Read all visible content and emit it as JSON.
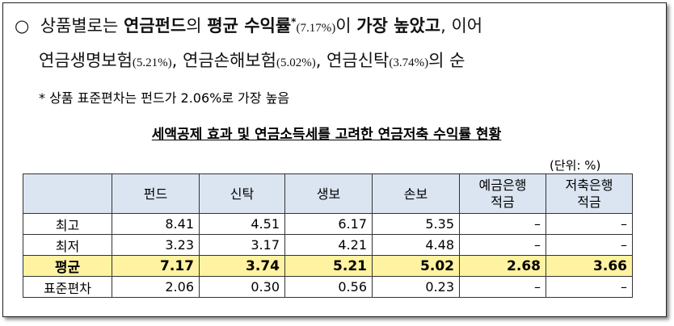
{
  "bullet": {
    "marker": "○",
    "lines": [
      [
        "상품별로는 ",
        "연금펀드",
        "의 ",
        "평균 수익률",
        "*",
        "(7.17%)",
        "이 ",
        "가장 높았고",
        ", 이어"
      ],
      [
        "연금생명보험",
        "(5.21%)",
        ", 연금손해보험",
        "(5.02%)",
        ", 연금신탁",
        "(3.74%)",
        "의 순"
      ]
    ]
  },
  "note": "* 상품 표준편차는 펀드가 2.06%로 가장 높음",
  "table": {
    "title": "세액공제 효과 및 연금소득세를 고려한 연금저축 수익률 현황",
    "unit": "(단위: %)",
    "header": [
      [
        "펀드"
      ],
      [
        "신탁"
      ],
      [
        "생보"
      ],
      [
        "손보"
      ],
      [
        "예금은행",
        "적금"
      ],
      [
        "저축은행",
        "적금"
      ]
    ],
    "rows": [
      {
        "label": "최고",
        "cells": [
          "8.41",
          "4.51",
          "6.17",
          "5.35",
          "–",
          "–"
        ]
      },
      {
        "label": "최저",
        "cells": [
          "3.23",
          "3.17",
          "4.21",
          "4.48",
          "–",
          "–"
        ]
      },
      {
        "label": "평균",
        "cells": [
          "7.17",
          "3.74",
          "5.21",
          "5.02",
          "2.68",
          "3.66"
        ]
      },
      {
        "label": "표준편차",
        "cells": [
          "2.06",
          "0.30",
          "0.56",
          "0.23",
          "–",
          "–"
        ]
      }
    ]
  }
}
